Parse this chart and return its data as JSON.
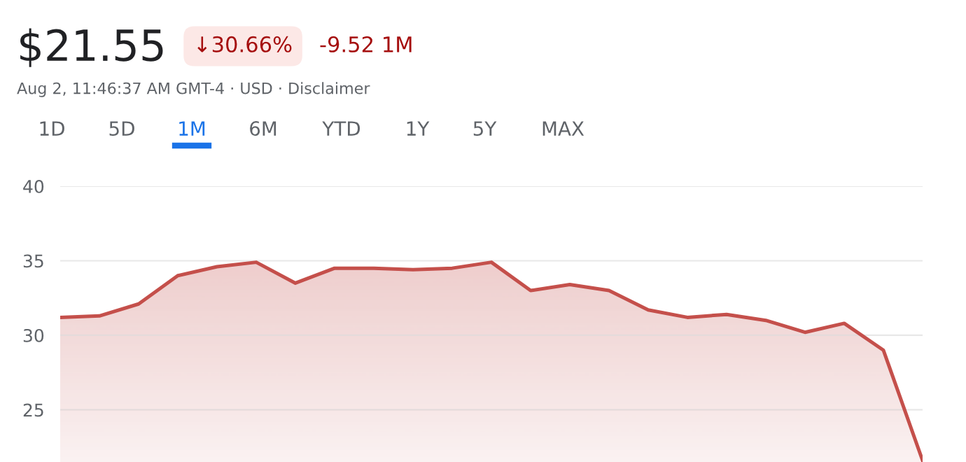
{
  "chart_data": {
    "type": "area",
    "title": "$21.55",
    "annotations": [
      "↓30.66%",
      "-9.52 1M",
      "Aug 2, 11:46:37 AM GMT-4 · USD · Disclaimer",
      "1D",
      "5D",
      "1M",
      "6M",
      "YTD",
      "1Y",
      "5Y",
      "MAX"
    ],
    "categories": [
      null,
      null,
      null,
      null,
      null,
      null,
      null,
      null,
      null,
      null,
      null,
      null,
      null,
      null,
      null,
      null,
      null,
      null,
      null,
      null,
      null,
      null,
      null
    ],
    "series": [
      {
        "color": "#c5504b",
        "values": [
          31.2,
          31.3,
          32.1,
          34.0,
          34.6,
          34.9,
          33.5,
          34.5,
          34.5,
          34.4,
          34.5,
          34.9,
          33.0,
          33.4,
          33.0,
          31.7,
          31.2,
          31.4,
          31.0,
          30.2,
          30.8,
          29.0,
          21.6
        ]
      }
    ],
    "ylim": [
      21.5,
      40
    ],
    "yticks": [
      25,
      30,
      35,
      40
    ],
    "grid": "y",
    "marker": "none",
    "line_style": "solid"
  }
}
